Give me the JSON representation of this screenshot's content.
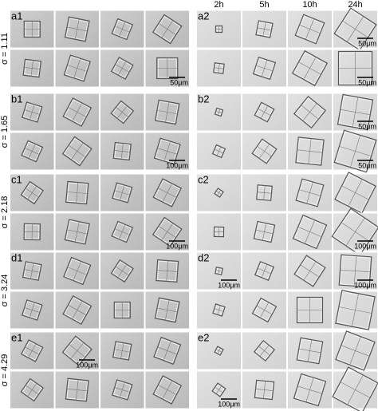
{
  "header": {
    "times": [
      "2h",
      "5h",
      "10h",
      "24h"
    ]
  },
  "rows": [
    {
      "sigma": "σ = 1.11",
      "panels": [
        {
          "label": "a1",
          "cells": [
            [
              null,
              null,
              null,
              null
            ],
            [
              null,
              null,
              null,
              "50μm"
            ]
          ]
        },
        {
          "label": "a2",
          "cells": [
            [
              null,
              null,
              null,
              "50μm"
            ],
            [
              null,
              null,
              null,
              "50μm"
            ]
          ]
        }
      ]
    },
    {
      "sigma": "σ = 1.65",
      "panels": [
        {
          "label": "b1",
          "cells": [
            [
              null,
              null,
              null,
              null
            ],
            [
              null,
              null,
              null,
              "100μm"
            ]
          ]
        },
        {
          "label": "b2",
          "cells": [
            [
              null,
              null,
              null,
              "50μm"
            ],
            [
              null,
              null,
              null,
              "50μm"
            ]
          ]
        }
      ]
    },
    {
      "sigma": "σ = 2.18",
      "panels": [
        {
          "label": "c1",
          "cells": [
            [
              null,
              null,
              null,
              null
            ],
            [
              null,
              null,
              null,
              "100μm"
            ]
          ]
        },
        {
          "label": "c2",
          "cells": [
            [
              null,
              null,
              null,
              null
            ],
            [
              null,
              null,
              null,
              "100μm"
            ]
          ]
        }
      ]
    },
    {
      "sigma": "σ = 3.24",
      "panels": [
        {
          "label": "d1",
          "cells": [
            [
              null,
              null,
              null,
              null
            ],
            [
              null,
              null,
              null,
              null
            ]
          ]
        },
        {
          "label": "d2",
          "cells": [
            [
              "100μm",
              null,
              null,
              "100μm"
            ],
            [
              null,
              null,
              null,
              null
            ]
          ]
        }
      ]
    },
    {
      "sigma": "σ = 4.29",
      "panels": [
        {
          "label": "e1",
          "cells": [
            [
              null,
              "100μm",
              null,
              null
            ],
            [
              null,
              null,
              null,
              null
            ]
          ]
        },
        {
          "label": "e2",
          "cells": [
            [
              null,
              null,
              null,
              null
            ],
            [
              "100μm",
              null,
              null,
              null
            ]
          ]
        }
      ]
    }
  ]
}
